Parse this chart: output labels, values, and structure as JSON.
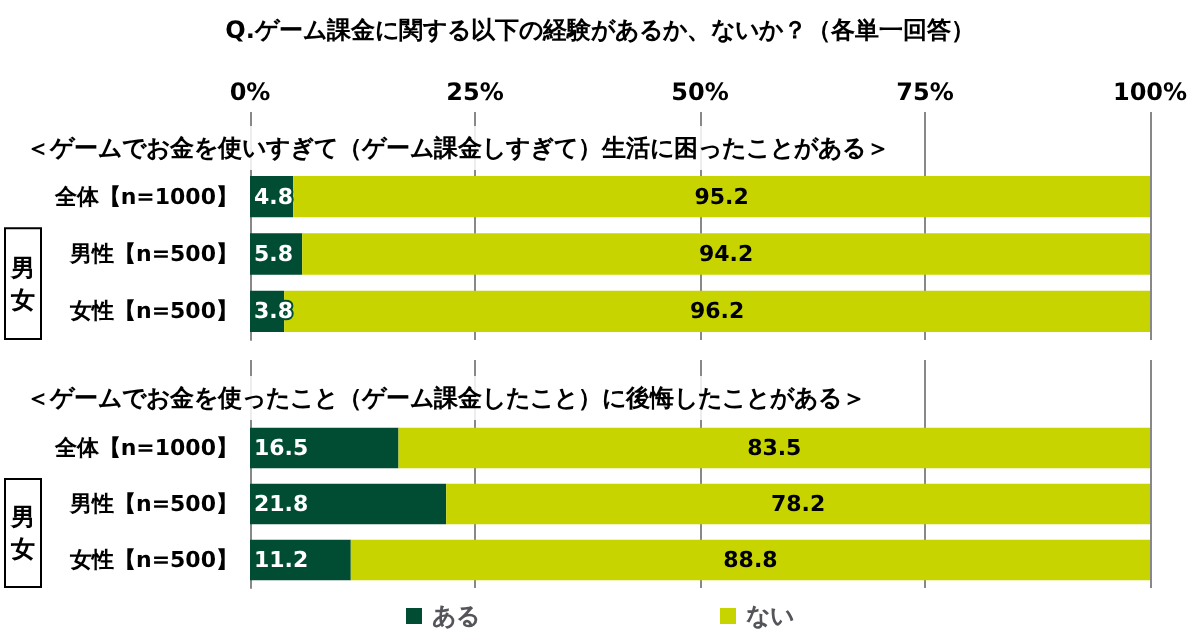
{
  "chart_data": [
    {
      "type": "bar",
      "orientation": "horizontal",
      "stacked": true,
      "title": "Q.ゲーム課金に関する以下の経験があるか、ないか？（各単一回答）",
      "subtitle": "＜ゲームでお金を使いすぎて（ゲーム課金しすぎて）生活に困ったことがある＞",
      "categories": [
        "全体【n=1000】",
        "男性【n=500】",
        "女性【n=500】"
      ],
      "series": [
        {
          "color": "#004d33",
          "values": [
            4.8,
            5.8,
            3.8
          ]
        },
        {
          "color": "#c8d400",
          "values": [
            95.2,
            94.2,
            96.2
          ]
        }
      ],
      "xlim": [
        0,
        100
      ],
      "xticks": [
        {
          "value": 0,
          "label": "0%"
        },
        {
          "value": 25,
          "label": "25%"
        },
        {
          "value": 50,
          "label": "50%"
        },
        {
          "value": 75,
          "label": "75%"
        },
        {
          "value": 100,
          "label": "100%"
        }
      ],
      "annotations": [
        "男女"
      ],
      "data_labels": true,
      "grid": "x",
      "legend": false
    },
    {
      "type": "bar",
      "orientation": "horizontal",
      "stacked": true,
      "subtitle": "＜ゲームでお金を使ったこと（ゲーム課金したこと）に後悔したことがある＞",
      "categories": [
        "全体【n=1000】",
        "男性【n=500】",
        "女性【n=500】"
      ],
      "series": [
        {
          "name": "ある",
          "color": "#004d33",
          "values": [
            16.5,
            21.8,
            11.2
          ]
        },
        {
          "name": "ない",
          "color": "#c8d400",
          "values": [
            83.5,
            78.2,
            88.8
          ]
        }
      ],
      "xlim": [
        0,
        100
      ],
      "xticks": [
        0,
        25,
        50,
        75,
        100
      ],
      "annotations": [
        "男女"
      ],
      "data_labels": true,
      "grid": "x",
      "legend": "bottom",
      "tick_labels": "y"
    }
  ]
}
